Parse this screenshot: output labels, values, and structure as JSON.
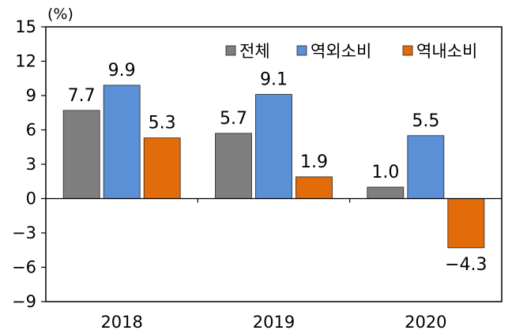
{
  "chart_data": {
    "type": "bar",
    "unit": "(%)",
    "categories": [
      "2018",
      "2019",
      "2020"
    ],
    "series": [
      {
        "name": "전체",
        "values": [
          7.7,
          5.7,
          1.0
        ],
        "color": "#7f7f7f"
      },
      {
        "name": "역외소비",
        "values": [
          9.9,
          9.1,
          5.5
        ],
        "color": "#5b8fd6"
      },
      {
        "name": "역내소비",
        "values": [
          5.3,
          1.9,
          -4.3
        ],
        "color": "#e36c0a"
      }
    ],
    "data_labels": [
      [
        "7.7",
        "9.9",
        "5.3"
      ],
      [
        "5.7",
        "9.1",
        "1.9"
      ],
      [
        "1.0",
        "5.5",
        "−4.3"
      ]
    ],
    "yticks": [
      15,
      12,
      9,
      6,
      3,
      0,
      -3,
      -6,
      -9
    ],
    "ytick_labels": [
      "15",
      "12",
      "9",
      "6",
      "3",
      "0",
      "−3",
      "−6",
      "−9"
    ],
    "ylim": [
      -9,
      15
    ],
    "grid": false,
    "legend_position": "top-right"
  }
}
